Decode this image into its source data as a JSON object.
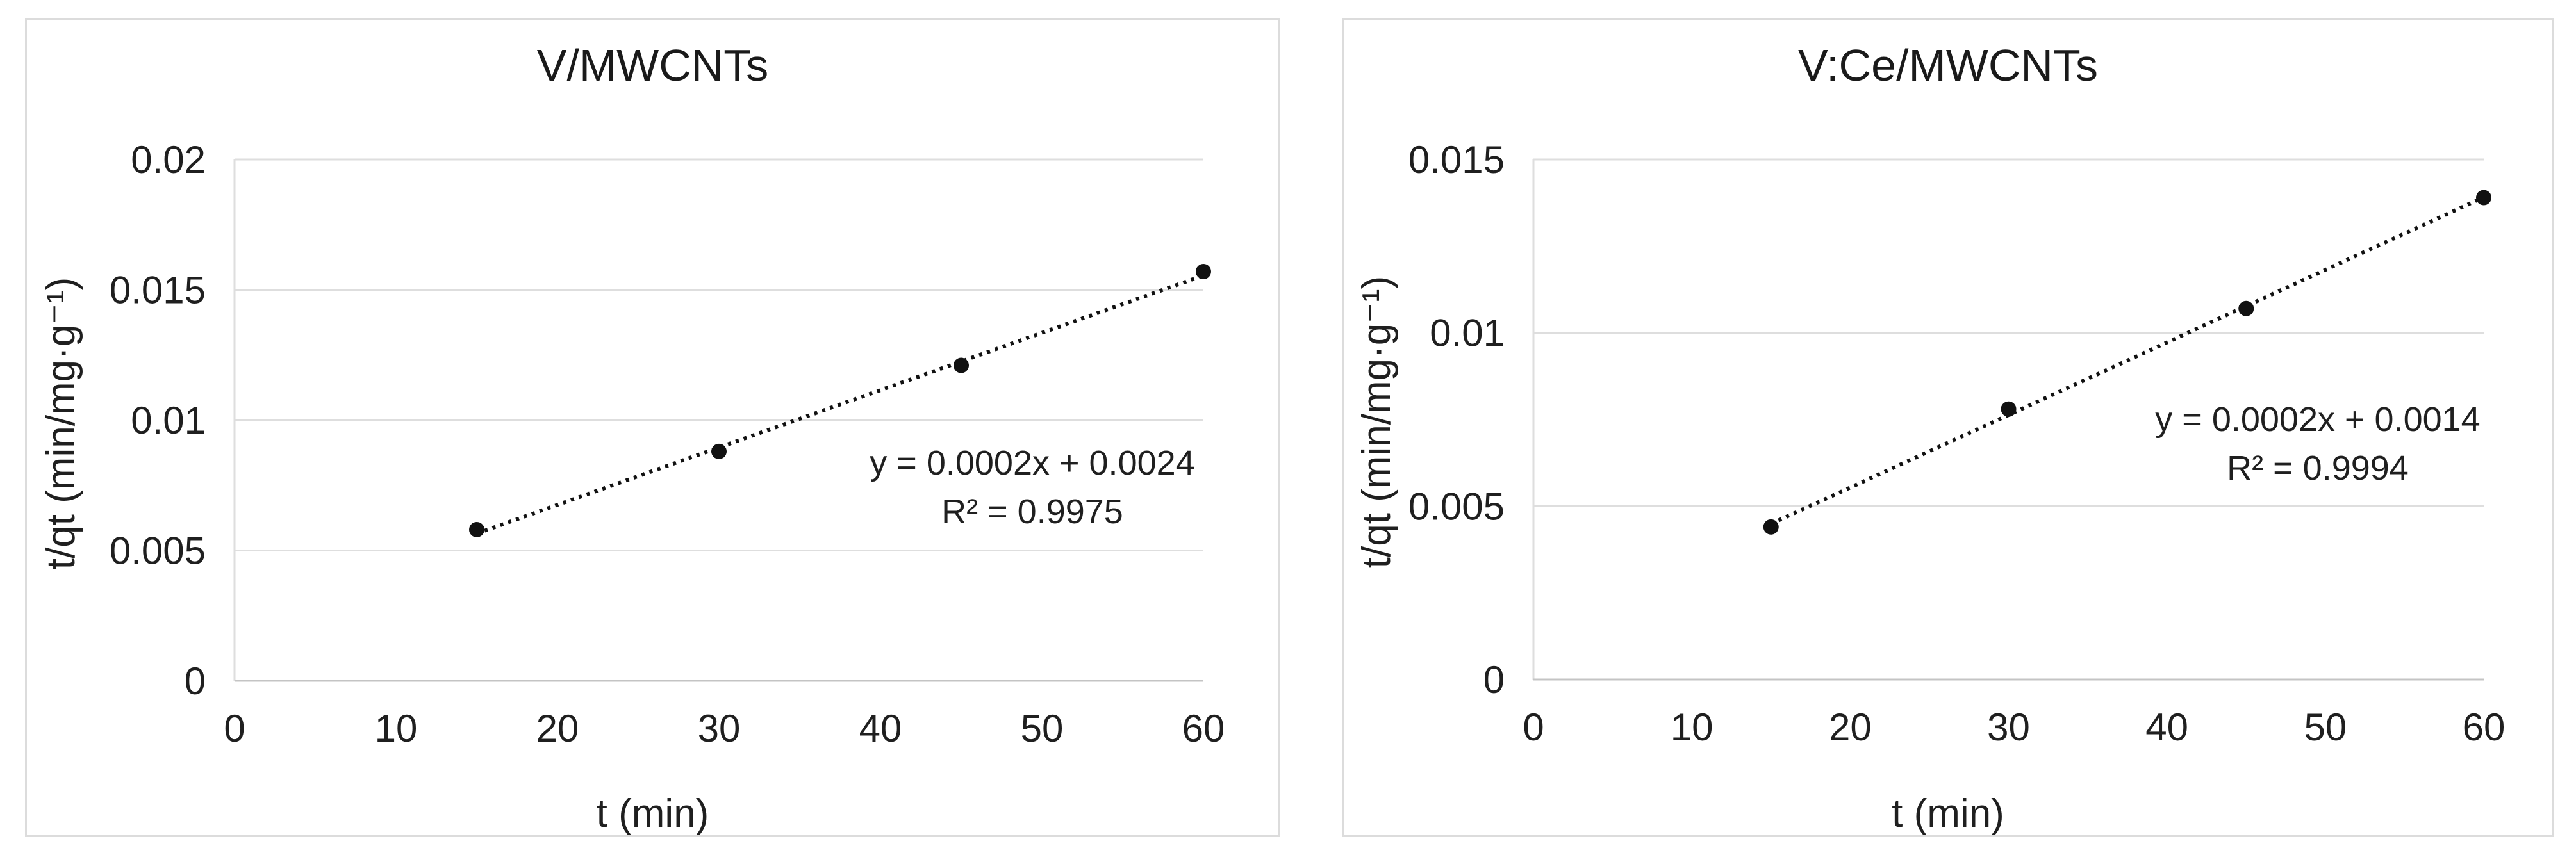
{
  "figure": {
    "background": "#ffffff",
    "description_colors": {
      "text": "#1f1f1f",
      "gridline": "#dedede",
      "axis_line": "#c4c4c4",
      "marker": "#111111",
      "trendline": "#111111",
      "panel_border": "#dcdcdc",
      "panel_background": "#ffffff"
    }
  },
  "chart_data": [
    {
      "type": "scatter",
      "title": "V/MWCNTs",
      "xlabel": "t (min)",
      "ylabel": "t/qt (min/mg·g⁻¹)",
      "xlim": [
        0,
        60
      ],
      "ylim": [
        0,
        0.02
      ],
      "x_tick_labels": [
        "0",
        "10",
        "20",
        "30",
        "40",
        "50",
        "60"
      ],
      "y_tick_labels": [
        "0",
        "0.005",
        "0.01",
        "0.015",
        "0.02"
      ],
      "x": [
        15,
        30,
        45,
        60
      ],
      "y": [
        0.0058,
        0.0088,
        0.0121,
        0.0157
      ],
      "trendline": {
        "kind": "linear",
        "line_style": "dotted",
        "equation": "y = 0.0002x + 0.0024",
        "r_squared": "R² = 0.9975"
      },
      "legend": "none",
      "grid": "horizontal-only"
    },
    {
      "type": "scatter",
      "title": "V:Ce/MWCNTs",
      "xlabel": "t (min)",
      "ylabel": "t/qt (min/mg·g⁻¹)",
      "xlim": [
        0,
        60
      ],
      "ylim": [
        0,
        0.015
      ],
      "x_tick_labels": [
        "0",
        "10",
        "20",
        "30",
        "40",
        "50",
        "60"
      ],
      "y_tick_labels": [
        "0",
        "0.005",
        "0.01",
        "0.015"
      ],
      "x": [
        15,
        30,
        45,
        60
      ],
      "y": [
        0.0044,
        0.0078,
        0.0107,
        0.0139
      ],
      "trendline": {
        "kind": "linear",
        "line_style": "dotted",
        "equation": "y = 0.0002x + 0.0014",
        "r_squared": "R² = 0.9994"
      },
      "legend": "none",
      "grid": "horizontal-only"
    }
  ]
}
